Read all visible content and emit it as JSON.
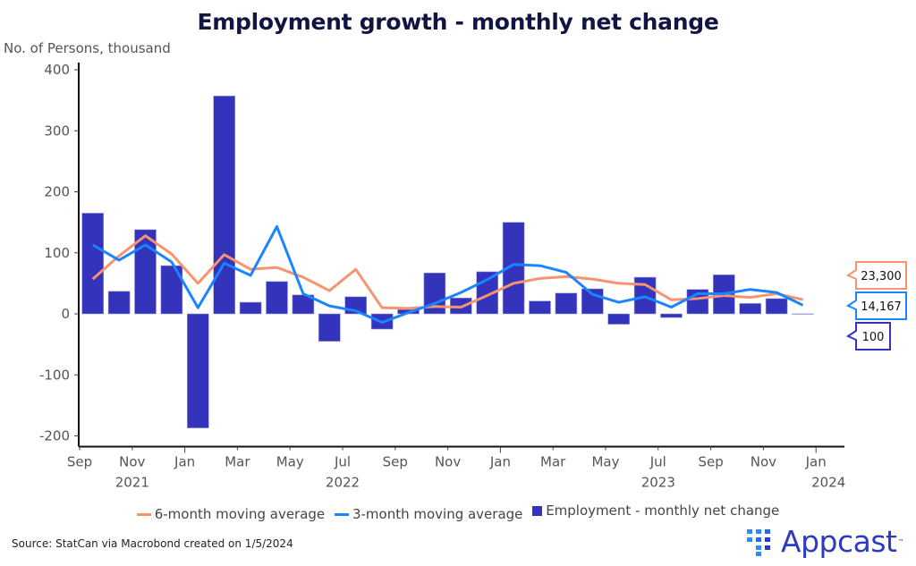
{
  "chart_data": {
    "type": "bar+line",
    "title": "Employment growth - monthly net change",
    "ylabel": "No. of Persons, thousand",
    "xlabel": "",
    "ylim": [
      -200,
      400
    ],
    "yticks": [
      -200,
      -100,
      0,
      100,
      200,
      300,
      400
    ],
    "grid": false,
    "legend_position": "bottom",
    "x": [
      "2021-09",
      "2021-10",
      "2021-11",
      "2021-12",
      "2022-01",
      "2022-02",
      "2022-03",
      "2022-04",
      "2022-05",
      "2022-06",
      "2022-07",
      "2022-08",
      "2022-09",
      "2022-10",
      "2022-11",
      "2022-12",
      "2023-01",
      "2023-02",
      "2023-03",
      "2023-04",
      "2023-05",
      "2023-06",
      "2023-07",
      "2023-08",
      "2023-09",
      "2023-10",
      "2023-11",
      "2023-12"
    ],
    "xtick_labels": [
      {
        "month_index": 0,
        "label": "Sep",
        "year": ""
      },
      {
        "month_index": 2,
        "label": "Nov",
        "year": "2021"
      },
      {
        "month_index": 4,
        "label": "Jan",
        "year": ""
      },
      {
        "month_index": 6,
        "label": "Mar",
        "year": ""
      },
      {
        "month_index": 8,
        "label": "May",
        "year": ""
      },
      {
        "month_index": 10,
        "label": "Jul",
        "year": "2022"
      },
      {
        "month_index": 12,
        "label": "Sep",
        "year": ""
      },
      {
        "month_index": 14,
        "label": "Nov",
        "year": ""
      },
      {
        "month_index": 16,
        "label": "Jan",
        "year": ""
      },
      {
        "month_index": 18,
        "label": "Mar",
        "year": ""
      },
      {
        "month_index": 20,
        "label": "May",
        "year": ""
      },
      {
        "month_index": 22,
        "label": "Jul",
        "year": "2023"
      },
      {
        "month_index": 24,
        "label": "Sep",
        "year": ""
      },
      {
        "month_index": 26,
        "label": "Nov",
        "year": ""
      },
      {
        "month_index": 28,
        "label": "Jan",
        "year": "2024"
      }
    ],
    "series": [
      {
        "name": "6-month moving average",
        "type": "line",
        "color": "#f7936f",
        "values": [
          57,
          95,
          128,
          98,
          50,
          97,
          73,
          76,
          60,
          38,
          73,
          10,
          9,
          12,
          11,
          30,
          50,
          58,
          61,
          57,
          50,
          48,
          23,
          25,
          30,
          27,
          33,
          23.3
        ],
        "end_label": "23,300"
      },
      {
        "name": "3-month moving average",
        "type": "line",
        "color": "#1a85ff",
        "values": [
          113,
          88,
          113,
          85,
          10,
          83,
          63,
          143,
          33,
          13,
          5,
          -14,
          2,
          17,
          35,
          56,
          81,
          79,
          68,
          32,
          19,
          28,
          11,
          33,
          33,
          40,
          35,
          14.2
        ],
        "end_label": "14,167"
      },
      {
        "name": "Employment - monthly net change",
        "type": "bar",
        "color": "#3333bb",
        "values": [
          165,
          37,
          138,
          79,
          -187,
          357,
          19,
          53,
          31,
          -45,
          28,
          -25,
          7,
          67,
          26,
          69,
          150,
          21,
          34,
          41,
          -17,
          60,
          -6,
          40,
          64,
          17,
          25,
          0.1
        ],
        "end_label": "100"
      }
    ]
  },
  "source": "Source: StatCan via Macrobond created on 1/5/2024",
  "logo": {
    "text": "Appcast",
    "tm": "™"
  }
}
